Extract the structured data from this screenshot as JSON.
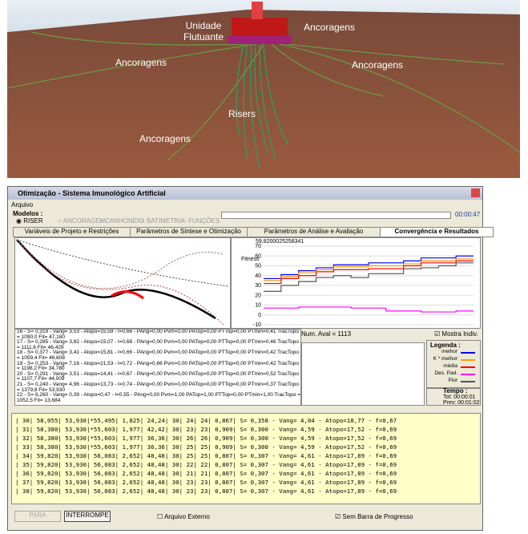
{
  "render": {
    "float_unit": [
      "Unidade",
      "Flutuante"
    ],
    "anchors": [
      "Ancoragens",
      "Ancoragens",
      "Ancoragens",
      "Ancoragens"
    ],
    "risers": "Risers"
  },
  "window": {
    "title": "Otimização - Sistema Imunológico Artificial",
    "menu": "Arquivo",
    "models_label": "Modelos :",
    "models": [
      "RISER",
      "ANCORAGEM",
      "CANHONEIO",
      "BATIMETRIA",
      "FUNÇÕES"
    ],
    "time": "00:00:47",
    "tabs": [
      "Variáveis de Projeto e Restrições",
      "Parâmetros de Síntese e Otimização",
      "Parâmetros de Análise e Avaliação",
      "Convergência e Resultados"
    ],
    "list": [
      "16 - S= 0,319 - Vang= 3,53 - Atopo=15,59 - l=0,66 - PAng=0,00 Pvm=0,00 PATop=0,00 PTTop=0,00 PTmin=0,41 TracTopo = 1090,0 Fit= 47,180",
      "17 - S= 0,285 - Vang= 3,82 - Atopo=15,07 - l=0,68 - PAng=0,00 Pvm=0,00 PATop=0,00 PTTop=0,00 PTmin=0,46 TracTopo = 1111,6 Fit= 46,429",
      "18 - S= 0,377 - Vang= 3,41 - Atopo=15,81 - l=0,66 - PAng=0,00 Pvm=0,00 PATop=0,00 PTTop=0,00 PTmin=0,42 TracTopo = 1059,4 Fit= 46,608",
      "19 - S= 0,253 - Vang= 7,16 - Atopo=21,53 - l=0,72 - PAng=0,66 Pvm=0,00 PATop=0,00 PTTop=0,00 PTmin=0,42 TracTopo = 1198,2 Fit= 34,780",
      "20 - S= 0,291 - Vang= 3,51 - Atopo=14,41 - l=0,67 - PAng=0,00 Pvm=0,00 PATop=0,00 PTTop=0,00 PTmin=0,52 TracTopo = 1107,7 Fit= 44,009",
      "21 - S= 0,240 - Vang= 4,96 - Atopo=13,73 - l=0,74 - PAng=0,00 Pvm=0,00 PATop=0,00 PTTop=0,00 PTmin=0,37 TracTopo = 1379,8 Fit= 53,930",
      "22 - S= 6,260 - Vang= 0,39 - Atopo=0,47 - l=0,55 - PAng=0,00 Pvm=1,00 PATop=1,00 PTTop=0,00 PTmin=1,00 TracTopo = 1052,5 Fit= 13,684"
    ],
    "num_aval": "Num. Aval = 1113",
    "show_indiv": "Mostra Indiv.",
    "legend_title": "Legenda :",
    "time_title": "Tempo :",
    "time_total": "Tot: 00:00:01",
    "time_prev": "Prev: 00:01:02",
    "table_rows": [
      "|    30|  58,055|  53,930|*55,495|  1,825|  24,24|      30|      24|      24|  0,867|  S= 0,358 - Vang= 4,04 - Atopo=18,77 - f=0,67",
      "|    31|  58,380|  53,930|*55,603|  1,977|  42,42|      30|      23|      23|  0,909|  S= 0,300 - Vang= 4,59 - Atopo=17,52 - f=0,69",
      "|    32|  58,380|  53,930|*55,603|  1,977|  36,36|      30|      26|      26|  0,909|  S= 0,300 - Vang= 4,59 - Atopo=17,52 - f=0,69",
      "|    33|  58,380|  53,930|*55,603|  1,977|  36,36|      30|      25|      25|  0,909|  S= 0,300 - Vang= 4,59 - Atopo=17,52 - f=0,69",
      "|    34|  59,820|  53,930|  56,083|  2,652|  48,48|      30|      25|      25|  0,807|  S= 0,307 - Vang= 4,61 - Atopo=17,89 - f=0,69",
      "|    35|  59,820|  53,930|  56,083|  2,652|  48,48|      30|      22|      22|  0,807|  S= 0,307 - Vang= 4,61 - Atopo=17,89 - f=0,69",
      "|    36|  59,820|  53,930|  56,083|  2,652|  48,48|      30|      21|      21|  0,807|  S= 0,307 - Vang= 4,61 - Atopo=17,89 - f=0,69",
      "|    37|  59,820|  53,930|  56,083|  2,652|  48,48|      30|      23|      23|  0,807|  S= 0,307 - Vang= 4,61 - Atopo=17,89 - f=0,69",
      "|    38|  59,820|  53,930|  56,083|  2,652|  48,48|      30|      23|      23|  0,807|  S= 0,307 - Vang= 4,61 - Atopo=17,89 - f=0,69"
    ],
    "buttons": [
      "PARA",
      "INTERROMPE"
    ],
    "checkboxes": [
      "Arquivo Externo",
      "Sem Barra de Progresso"
    ]
  },
  "chart_data": {
    "type": "line",
    "title": "59,8200025258341",
    "y_label": "Fitness",
    "ylim": [
      -10,
      70
    ],
    "yticks": [
      70,
      60,
      50,
      40,
      30,
      20,
      10,
      0,
      -10
    ],
    "series": [
      {
        "name": "melhor",
        "color": "#0000ff",
        "values": [
          37,
          41,
          45,
          48,
          51,
          51,
          53,
          53,
          55,
          58,
          58,
          60
        ]
      },
      {
        "name": "K * melhor",
        "color": "#ff9900",
        "values": [
          35,
          39,
          43,
          46,
          49,
          49,
          50,
          50,
          52,
          55,
          55,
          57
        ]
      },
      {
        "name": "média",
        "color": "#ff0000",
        "values": [
          32,
          37,
          40,
          44,
          46,
          46,
          47,
          47,
          50,
          53,
          53,
          55
        ]
      },
      {
        "name": "Des. Pad.",
        "color": "#ff00ff",
        "values": [
          7,
          7,
          8,
          8,
          8,
          7,
          7,
          4,
          4,
          3,
          3,
          4
        ]
      },
      {
        "name": "Pior",
        "color": "#555555",
        "values": [
          24,
          30,
          34,
          38,
          40,
          38,
          42,
          42,
          47,
          48,
          50,
          53
        ]
      }
    ]
  }
}
